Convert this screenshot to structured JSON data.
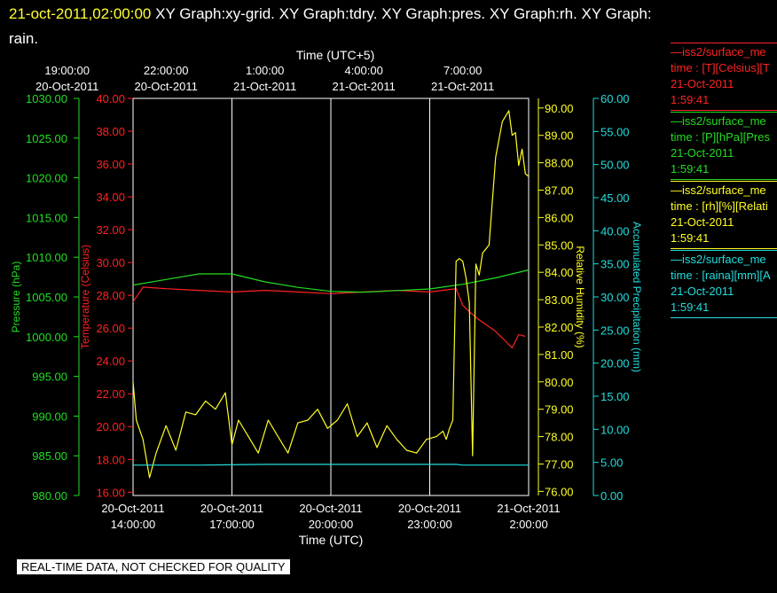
{
  "header": {
    "timestamp": "21-oct-2011,02:00:00",
    "titles": [
      "XY Graph:xy-grid.",
      "XY Graph:tdry.",
      "XY Graph:pres.",
      "XY Graph:rh.",
      "XY Graph:",
      "rain."
    ]
  },
  "footer": {
    "notice": "REAL-TIME DATA, NOT CHECKED FOR QUALITY"
  },
  "colors": {
    "temperature": "#ff2222",
    "pressure": "#22dd22",
    "humidity": "#ffff22",
    "precip": "#22dddd",
    "grid": "#ffffff"
  },
  "legend": [
    {
      "series": "temperature",
      "name": "—iss2/surface_me",
      "units": "time : [T][Celsius][T",
      "date": "21-Oct-2011",
      "time": "1:59:41"
    },
    {
      "series": "pressure",
      "name": "—iss2/surface_me",
      "units": "time : [P][hPa][Pres",
      "date": "21-Oct-2011",
      "time": "1:59:41"
    },
    {
      "series": "humidity",
      "name": "—iss2/surface_me",
      "units": "time : [rh][%][Relati",
      "date": "21-Oct-2011",
      "time": "1:59:41"
    },
    {
      "series": "precip",
      "name": "—iss2/surface_me",
      "units": "time : [raina][mm][A",
      "date": "21-Oct-2011",
      "time": "1:59:41"
    }
  ],
  "chart_data": {
    "type": "line",
    "x_range_utc_hours": [
      14.0,
      26.0
    ],
    "top_axis": {
      "title": "Time (UTC+5)",
      "ticks": [
        {
          "x": 17.0,
          "time": "19:00:00",
          "date": "20-Oct-2011"
        },
        {
          "x": 20.0,
          "time": "22:00:00",
          "date": "20-Oct-2011"
        },
        {
          "x": 23.0,
          "time": "1:00:00",
          "date": "21-Oct-2011"
        },
        {
          "x": 26.0,
          "time": "4:00:00",
          "date": "21-Oct-2011"
        },
        {
          "x": 29.0,
          "time": "7:00:00",
          "date": "21-Oct-2011"
        }
      ]
    },
    "bottom_axis": {
      "title": "Time (UTC)",
      "ticks": [
        {
          "x": 14.0,
          "date": "20-Oct-2011",
          "time": "14:00:00"
        },
        {
          "x": 17.0,
          "date": "20-Oct-2011",
          "time": "17:00:00"
        },
        {
          "x": 20.0,
          "date": "20-Oct-2011",
          "time": "20:00:00"
        },
        {
          "x": 23.0,
          "date": "20-Oct-2011",
          "time": "23:00:00"
        },
        {
          "x": 26.0,
          "date": "21-Oct-2011",
          "time": "2:00:00"
        }
      ]
    },
    "grid": true,
    "axes": {
      "pressure": {
        "label": "Pressure (hPa)",
        "range": [
          980,
          1030
        ],
        "ticks": [
          "980.00",
          "985.00",
          "990.00",
          "995.00",
          "1000.00",
          "1005.00",
          "1010.00",
          "1015.00",
          "1020.00",
          "1025.00",
          "1030.00"
        ]
      },
      "temperature": {
        "label": "Temperature (Celsius)",
        "range": [
          15.8,
          40.0
        ],
        "ticks": [
          "16.00",
          "18.00",
          "20.00",
          "22.00",
          "24.00",
          "26.00",
          "28.00",
          "30.00",
          "32.00",
          "34.00",
          "36.00",
          "38.00",
          "40.00"
        ]
      },
      "humidity": {
        "label": "Relative Humidity (%)",
        "range": [
          75.85,
          90.35
        ],
        "ticks": [
          "76.00",
          "77.00",
          "78.00",
          "79.00",
          "80.00",
          "81.00",
          "82.00",
          "83.00",
          "84.00",
          "85.00",
          "86.00",
          "87.00",
          "88.00",
          "89.00",
          "90.00"
        ]
      },
      "precip": {
        "label": "Accumulated Precipitation (mm)",
        "range": [
          0,
          60
        ],
        "ticks": [
          "0.00",
          "5.00",
          "10.00",
          "15.00",
          "20.00",
          "25.00",
          "30.00",
          "35.00",
          "40.00",
          "45.00",
          "50.00",
          "55.00",
          "60.00"
        ]
      }
    },
    "series": [
      {
        "name": "Temperature",
        "axis": "temperature",
        "x": [
          14.0,
          14.3,
          15.0,
          16.0,
          17.0,
          18.0,
          19.0,
          20.0,
          21.0,
          22.0,
          23.0,
          23.8,
          24.0,
          24.2,
          24.5,
          25.0,
          25.3,
          25.5,
          25.7,
          25.9
        ],
        "y": [
          27.6,
          28.5,
          28.4,
          28.3,
          28.2,
          28.3,
          28.2,
          28.1,
          28.2,
          28.3,
          28.2,
          28.4,
          27.4,
          27.0,
          26.5,
          25.8,
          25.2,
          24.8,
          25.6,
          25.5
        ]
      },
      {
        "name": "Pressure",
        "axis": "pressure",
        "x": [
          14.0,
          15.0,
          16.0,
          17.0,
          18.0,
          19.0,
          20.0,
          21.0,
          22.0,
          23.0,
          24.0,
          25.0,
          26.0
        ],
        "y": [
          1006.5,
          1007.2,
          1007.9,
          1007.9,
          1006.9,
          1006.2,
          1005.7,
          1005.6,
          1005.8,
          1006.0,
          1006.6,
          1007.4,
          1008.4
        ]
      },
      {
        "name": "Relative Humidity",
        "axis": "humidity",
        "x": [
          14.0,
          14.1,
          14.3,
          14.5,
          14.7,
          15.0,
          15.3,
          15.6,
          15.9,
          16.2,
          16.5,
          16.8,
          17.0,
          17.2,
          17.5,
          17.8,
          18.1,
          18.4,
          18.7,
          19.0,
          19.3,
          19.6,
          19.9,
          20.2,
          20.5,
          20.8,
          21.1,
          21.4,
          21.7,
          22.0,
          22.3,
          22.6,
          22.9,
          23.2,
          23.4,
          23.5,
          23.6,
          23.7,
          23.8,
          23.9,
          24.0,
          24.1,
          24.2,
          24.3,
          24.4,
          24.5,
          24.6,
          24.8,
          25.0,
          25.2,
          25.4,
          25.5,
          25.6,
          25.7,
          25.8,
          25.9,
          26.0
        ],
        "y": [
          80.0,
          78.6,
          77.9,
          76.5,
          77.4,
          78.4,
          77.5,
          78.9,
          78.8,
          79.3,
          79.0,
          79.6,
          77.7,
          78.6,
          78.0,
          77.4,
          78.6,
          78.0,
          77.4,
          78.5,
          78.6,
          79.0,
          78.3,
          78.6,
          79.2,
          78.0,
          78.5,
          77.6,
          78.4,
          77.9,
          77.5,
          77.4,
          77.9,
          78.0,
          78.2,
          77.9,
          78.3,
          78.6,
          84.4,
          84.5,
          84.4,
          83.8,
          82.9,
          77.3,
          84.3,
          83.9,
          84.7,
          85.0,
          88.2,
          89.5,
          89.9,
          89.0,
          89.1,
          87.9,
          88.5,
          87.6,
          87.5
        ]
      },
      {
        "name": "Accumulated Precipitation",
        "axis": "precip",
        "x": [
          14.0,
          16.0,
          18.0,
          20.0,
          22.0,
          23.8,
          24.0,
          25.0,
          26.0
        ],
        "y": [
          4.6,
          4.6,
          4.7,
          4.7,
          4.7,
          4.7,
          4.6,
          4.6,
          4.6
        ]
      }
    ]
  }
}
